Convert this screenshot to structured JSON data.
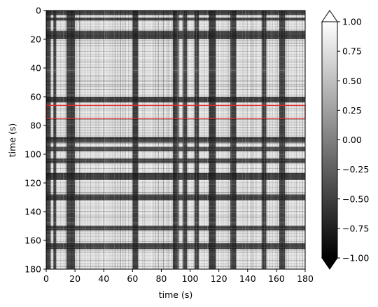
{
  "chart_data": {
    "type": "heatmap",
    "xlabel": "time (s)",
    "ylabel": "time (s)",
    "xlim": [
      0,
      180
    ],
    "ylim": [
      180,
      0
    ],
    "x_ticks": [
      "0",
      "20",
      "40",
      "60",
      "80",
      "100",
      "120",
      "140",
      "160",
      "180"
    ],
    "y_ticks": [
      "0",
      "20",
      "40",
      "60",
      "80",
      "100",
      "120",
      "140",
      "160",
      "180"
    ],
    "colorbar": {
      "min": -1.0,
      "max": 1.0,
      "ticks": [
        "1.00",
        "0.75",
        "0.50",
        "0.25",
        "0.00",
        "−0.25",
        "−0.50",
        "−0.75",
        "−1.00"
      ],
      "extend": "both",
      "colormap": "gray"
    },
    "dark_bands_s": [
      [
        0,
        3
      ],
      [
        5,
        7
      ],
      [
        14,
        20
      ],
      [
        60,
        64
      ],
      [
        88,
        92
      ],
      [
        95,
        98
      ],
      [
        103,
        106
      ],
      [
        113,
        118
      ],
      [
        128,
        132
      ],
      [
        150,
        153
      ],
      [
        162,
        166
      ]
    ],
    "highlight": {
      "y_start": 66,
      "y_end": 75,
      "color": "#e8262a"
    }
  }
}
